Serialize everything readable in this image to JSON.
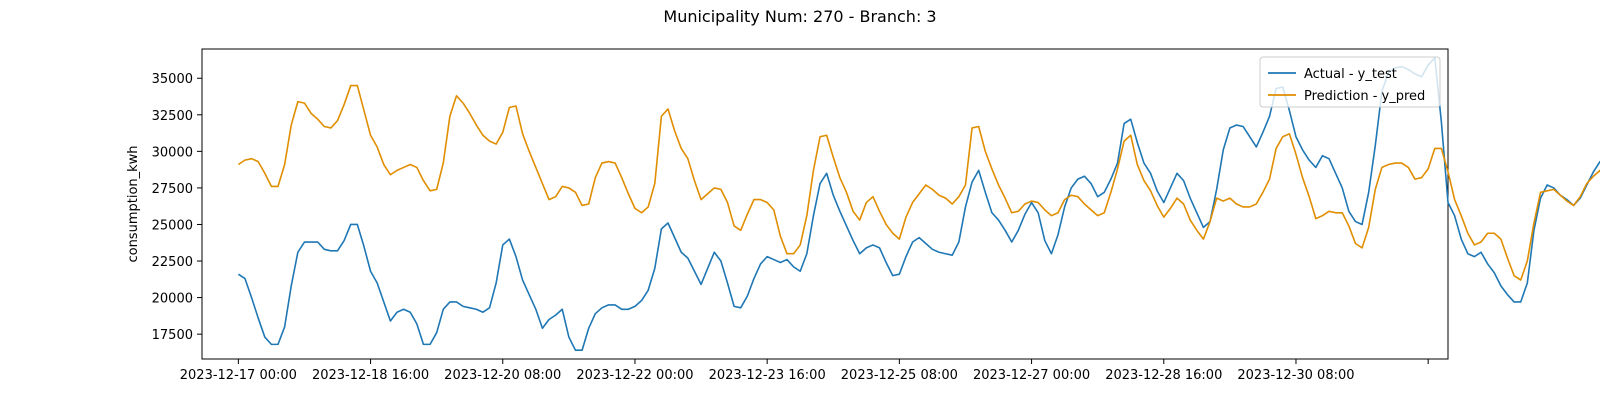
{
  "chart_data": {
    "type": "line",
    "title": "Municipality Num: 270 - Branch: 3",
    "xlabel": "",
    "ylabel": "consumption_kwh",
    "x_start": "2023-12-17 00:00",
    "x_interval_hours": 2,
    "x_ticks": [
      {
        "label": "2023-12-17 00:00",
        "value": "2023-12-17 00:00"
      },
      {
        "label": "2023-12-18 16:00",
        "value": "2023-12-18 16:00"
      },
      {
        "label": "2023-12-20 08:00",
        "value": "2023-12-20 08:00"
      },
      {
        "label": "2023-12-22 00:00",
        "value": "2023-12-22 00:00"
      },
      {
        "label": "2023-12-23 16:00",
        "value": "2023-12-23 16:00"
      },
      {
        "label": "2023-12-25 08:00",
        "value": "2023-12-25 08:00"
      },
      {
        "label": "2023-12-27 00:00",
        "value": "2023-12-27 00:00"
      },
      {
        "label": "2023-12-28 16:00",
        "value": "2023-12-28 16:00"
      },
      {
        "label": "2023-12-30 08:00",
        "value": "2023-12-30 08:00"
      },
      {
        "label": "",
        "value": "2023-01-01 00:00"
      }
    ],
    "y_ticks": [
      17500,
      20000,
      22500,
      25000,
      27500,
      30000,
      32500,
      35000
    ],
    "ylim": [
      15800,
      37000
    ],
    "xlim": [
      "2023-12-16 13:00",
      "2024-01-01 06:00"
    ],
    "grid": false,
    "legend_position": "upper right",
    "series": [
      {
        "name": "Actual - y_test",
        "color": "#1f77b4",
        "values": [
          21600,
          21300,
          20000,
          18600,
          17300,
          16800,
          16800,
          18000,
          20800,
          23100,
          23800,
          23800,
          23800,
          23300,
          23200,
          23200,
          23900,
          25000,
          25000,
          23500,
          21800,
          21000,
          19700,
          18400,
          19000,
          19200,
          19000,
          18200,
          16800,
          16800,
          17600,
          19200,
          19700,
          19700,
          19400,
          19300,
          19200,
          19000,
          19300,
          21000,
          23600,
          24000,
          22800,
          21200,
          20200,
          19200,
          17900,
          18500,
          18800,
          19200,
          17300,
          16400,
          16400,
          17900,
          18900,
          19300,
          19500,
          19500,
          19200,
          19200,
          19400,
          19800,
          20500,
          22000,
          24700,
          25100,
          24100,
          23100,
          22700,
          21800,
          20900,
          22000,
          23100,
          22500,
          21000,
          19400,
          19300,
          20100,
          21300,
          22300,
          22800,
          22600,
          22400,
          22600,
          22100,
          21800,
          23000,
          25600,
          27800,
          28500,
          27000,
          25900,
          24900,
          23900,
          23000,
          23400,
          23600,
          23400,
          22400,
          21500,
          21600,
          22800,
          23800,
          24100,
          23700,
          23300,
          23100,
          23000,
          22900,
          23800,
          26200,
          27900,
          28700,
          27200,
          25800,
          25300,
          24600,
          23800,
          24600,
          25700,
          26500,
          25800,
          23900,
          23000,
          24300,
          26200,
          27500,
          28100,
          28300,
          27800,
          26900,
          27200,
          28100,
          29200,
          31900,
          32200,
          30600,
          29200,
          28500,
          27300,
          26500,
          27500,
          28500,
          28000,
          26800,
          25800,
          24800,
          25200,
          27400,
          30100,
          31600,
          31800,
          31700,
          31000,
          30300,
          31300,
          32400,
          34300,
          34400,
          32800,
          31000,
          30100,
          29400,
          28900,
          29700,
          29500,
          28500,
          27500,
          25900,
          25200,
          25000,
          27200,
          30400,
          34100,
          35400,
          35700,
          35800,
          35600,
          35300,
          35100,
          35900,
          36400,
          32000,
          26500,
          25600,
          24000,
          23000,
          22800,
          23100,
          22300,
          21700,
          20800,
          20200,
          19700,
          19700,
          21000,
          24600,
          26800,
          27700,
          27500,
          27000,
          26700,
          26300,
          26800,
          27700,
          28600,
          29300,
          29400,
          28100,
          26900,
          25100,
          23200,
          22900,
          22500,
          21900,
          21600,
          20400,
          20100,
          19700,
          21100,
          24700,
          27900,
          29500,
          30000,
          29600,
          28100,
          26700,
          26500,
          27300,
          28500,
          28800,
          28400,
          27300,
          26400,
          25700,
          24900,
          24000,
          24200,
          24700,
          24300,
          23100,
          22100,
          22200,
          23000,
          24300,
          27000,
          28600,
          28400,
          27400,
          26300,
          26200,
          26800,
          28100,
          30000,
          32300,
          32600,
          30600,
          29100,
          27800,
          27300,
          26700,
          26900,
          27500,
          25900,
          25300,
          24300,
          22900,
          21400,
          20800,
          21900,
          24100,
          25800,
          26200,
          26100,
          25500,
          24800,
          24400,
          24800,
          25900,
          27900,
          28200,
          26400,
          24800,
          23200,
          21900,
          21000,
          21300,
          21200,
          20400,
          19900,
          19400,
          19100,
          19100,
          20300,
          22600,
          24900,
          25400,
          25000,
          24100,
          23600,
          23300,
          24100,
          25500,
          27100,
          27900,
          28500,
          27100,
          25200,
          24300,
          23200,
          22200,
          22500,
          22500,
          23000,
          21300,
          20500,
          19800,
          20200,
          21800,
          24200,
          26700,
          26600,
          25500,
          24900,
          24000,
          23700,
          24300,
          25700,
          28000,
          29100,
          29500,
          28200,
          26000,
          24900,
          24100,
          23400,
          22400,
          22500,
          22500,
          22300,
          22000,
          21500,
          20500,
          20100,
          21200,
          23500,
          26800,
          28300,
          28600,
          28500,
          28400,
          28600,
          29200,
          29800,
          30800,
          32000,
          31700,
          30000,
          27000,
          25600,
          24100,
          22900
        ]
      },
      {
        "name": "Prediction - y_pred",
        "color": "#e08e00",
        "values": [
          29100,
          29400,
          29500,
          29300,
          28500,
          27600,
          27600,
          29100,
          31800,
          33400,
          33300,
          32600,
          32200,
          31700,
          31600,
          32100,
          33200,
          34500,
          34500,
          32800,
          31100,
          30300,
          29100,
          28400,
          28700,
          28900,
          29100,
          28900,
          28000,
          27300,
          27400,
          29200,
          32400,
          33800,
          33300,
          32600,
          31800,
          31100,
          30700,
          30500,
          31300,
          33000,
          33100,
          31200,
          30000,
          28900,
          27800,
          26700,
          26900,
          27600,
          27500,
          27200,
          26300,
          26400,
          28200,
          29200,
          29300,
          29200,
          28200,
          27100,
          26100,
          25800,
          26200,
          27800,
          32400,
          32900,
          31400,
          30200,
          29500,
          28000,
          26700,
          27100,
          27500,
          27400,
          26500,
          24900,
          24600,
          25700,
          26700,
          26700,
          26500,
          26000,
          24200,
          23000,
          23000,
          23600,
          25600,
          28700,
          31000,
          31100,
          29600,
          28200,
          27200,
          25900,
          25300,
          26500,
          26900,
          25900,
          25000,
          24400,
          24000,
          25500,
          26500,
          27100,
          27700,
          27400,
          27000,
          26800,
          26400,
          26900,
          27700,
          31600,
          31700,
          30000,
          28800,
          27700,
          26800,
          25800,
          25900,
          26400,
          26600,
          26500,
          26000,
          25600,
          25800,
          26700,
          27000,
          26900,
          26400,
          26000,
          25600,
          25800,
          27200,
          28800,
          30700,
          31100,
          29100,
          28000,
          27300,
          26300,
          25500,
          26100,
          26800,
          26400,
          25300,
          24600,
          24000,
          25200,
          26800,
          26600,
          26800,
          26400,
          26200,
          26200,
          26400,
          27200,
          28100,
          30200,
          31000,
          31200,
          29800,
          28200,
          26900,
          25400,
          25600,
          25900,
          25800,
          25800,
          24900,
          23700,
          23400,
          24800,
          27400,
          28900,
          29100,
          29200,
          29200,
          28900,
          28100,
          28200,
          28800,
          30200,
          30200,
          28600,
          26700,
          25600,
          24400,
          23600,
          23800,
          24400,
          24400,
          24000,
          22700,
          21500,
          21200,
          22500,
          25100,
          27200,
          27300,
          27400,
          27000,
          26600,
          26300,
          26900,
          27800,
          28300,
          28700,
          27400,
          25900,
          25000,
          23900,
          22700,
          21900,
          22600,
          23600,
          22900,
          22100,
          20700,
          20400,
          20900,
          22300,
          22800,
          23000,
          22700,
          22300,
          22300,
          22400,
          22800,
          23800,
          25700,
          27800,
          27900,
          26200,
          24800,
          23700,
          22900,
          22100,
          22900,
          23500,
          24000,
          23300,
          21700,
          21600,
          22600,
          24700,
          24900,
          25000,
          24200,
          23600,
          22700,
          23000,
          24000,
          25500,
          28700,
          29600,
          29900,
          27100,
          27400,
          26900,
          26100,
          25100,
          26000,
          26800,
          27100,
          26800,
          26300,
          25600,
          24900,
          25900,
          26600,
          26800,
          27000,
          26900,
          26800,
          27000,
          27900,
          29100,
          31900,
          32400,
          30900,
          29600,
          28700,
          27400,
          26700,
          27700,
          28900,
          28400,
          27300,
          25600,
          25500,
          26400,
          27400,
          27900,
          28200,
          28100,
          27400,
          26600,
          26300,
          26200,
          26800,
          27800,
          29200,
          31500,
          31800,
          30300,
          29000,
          28000,
          26800,
          25800,
          26000,
          26300,
          26800,
          25600,
          24300,
          23600,
          23700,
          24800,
          24900,
          24800,
          24500,
          23900,
          23800,
          23600,
          24200,
          24900,
          27400,
          27900,
          27500,
          25700,
          24700,
          23300,
          22200,
          22200,
          22300,
          22500,
          22500,
          21900,
          21300,
          20500,
          19700,
          20400,
          22700,
          24700,
          25200,
          24900,
          24400,
          24000,
          23800,
          23500,
          24700,
          26100,
          25900,
          24700,
          22700,
          21800,
          20900,
          19600
        ]
      }
    ]
  }
}
